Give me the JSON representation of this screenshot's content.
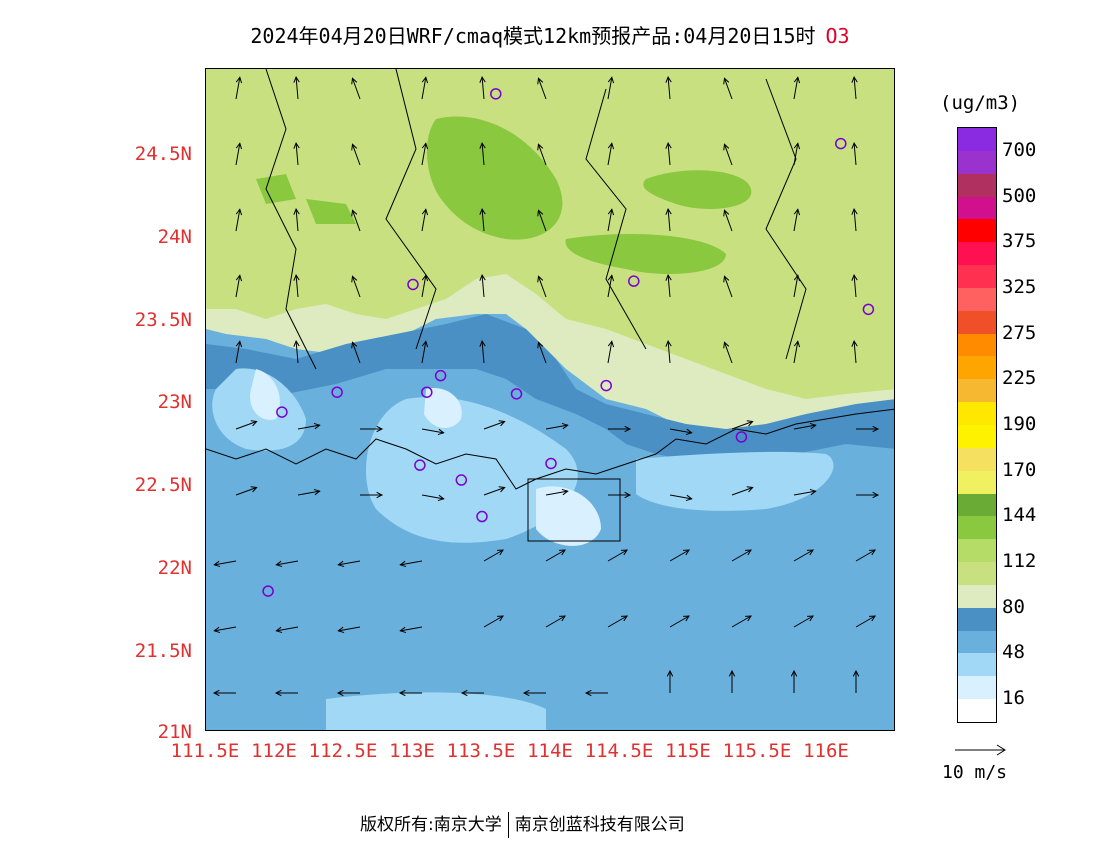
{
  "title": {
    "main": "2024年04月20日WRF/cmaq模式12km预报产品:04月20日15时",
    "species": "O3"
  },
  "legend": {
    "unit": "(ug/m3)",
    "labels": [
      "700",
      "500",
      "375",
      "325",
      "275",
      "225",
      "190",
      "170",
      "144",
      "112",
      "80",
      "48",
      "16"
    ],
    "colors": [
      "#8a2be2",
      "#9a32cd",
      "#b03060",
      "#d0108c",
      "#ff0000",
      "#ff1050",
      "#ff3050",
      "#ff6060",
      "#f05028",
      "#ff8c00",
      "#ffa500",
      "#f5b830",
      "#ffe800",
      "#fff200",
      "#f5e060",
      "#f0f060",
      "#6aab35",
      "#8ac840",
      "#b4dc66",
      "#c8e080",
      "#deebc0",
      "#4a90c4",
      "#6ab0dc",
      "#a0d8f5",
      "#d8f0ff",
      "#ffffff"
    ]
  },
  "axes": {
    "lat_labels": [
      "24.5N",
      "24N",
      "23.5N",
      "23N",
      "22.5N",
      "22N",
      "21.5N",
      "21N"
    ],
    "lon_labels": [
      "111.5E",
      "112E",
      "112.5E",
      "113E",
      "113.5E",
      "114E",
      "114.5E",
      "115E",
      "115.5E",
      "116E"
    ]
  },
  "wind_reference": {
    "label": "10 m/s"
  },
  "footer": {
    "copyright_label": "版权所有:",
    "org1": "南京大学",
    "org2": "南京创蓝科技有限公司"
  },
  "stations": [
    {
      "lon": 113.6,
      "lat": 24.85
    },
    {
      "lon": 116.1,
      "lat": 24.55
    },
    {
      "lon": 113.0,
      "lat": 23.7
    },
    {
      "lon": 114.6,
      "lat": 23.72
    },
    {
      "lon": 116.3,
      "lat": 23.55
    },
    {
      "lon": 112.45,
      "lat": 23.05
    },
    {
      "lon": 113.2,
      "lat": 23.15
    },
    {
      "lon": 113.1,
      "lat": 23.05
    },
    {
      "lon": 113.75,
      "lat": 23.04
    },
    {
      "lon": 114.4,
      "lat": 23.09
    },
    {
      "lon": 112.05,
      "lat": 22.93
    },
    {
      "lon": 115.38,
      "lat": 22.78
    },
    {
      "lon": 113.05,
      "lat": 22.61
    },
    {
      "lon": 113.35,
      "lat": 22.52
    },
    {
      "lon": 114.0,
      "lat": 22.62
    },
    {
      "lon": 113.5,
      "lat": 22.3
    },
    {
      "lon": 111.95,
      "lat": 21.85
    }
  ],
  "colors": {
    "axis_text": "#e03030",
    "title_species": "#e0002a",
    "station": "#7a00d0"
  }
}
